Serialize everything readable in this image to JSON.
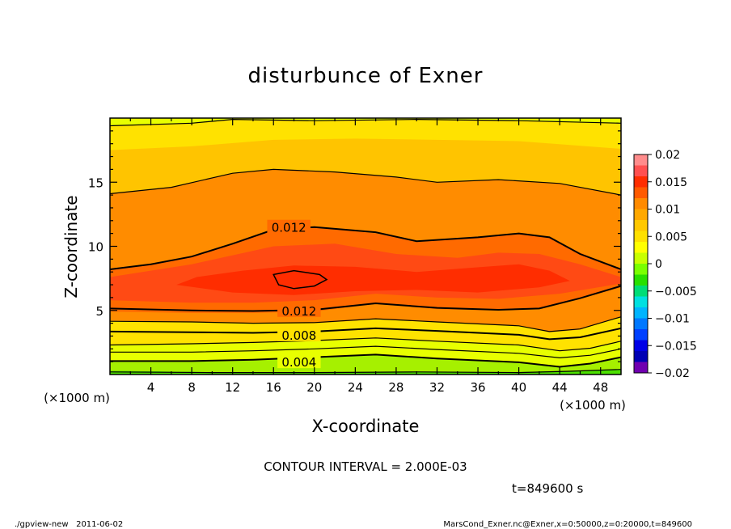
{
  "chart_data": {
    "type": "contour",
    "title": "disturbunce of Exner",
    "xlabel": "X-coordinate",
    "ylabel": "Z-coordinate",
    "x_unit_label": "(×1000 m)",
    "y_unit_label": "(×1000 m)",
    "xlim": [
      0,
      50
    ],
    "ylim": [
      0,
      20
    ],
    "x_ticks": [
      4,
      8,
      12,
      16,
      20,
      24,
      28,
      32,
      36,
      40,
      44,
      48
    ],
    "y_ticks": [
      5,
      10,
      15
    ],
    "contour_labels": [
      {
        "text": "0.012",
        "x": 17.5,
        "z": 11.5
      },
      {
        "text": "0.012",
        "x": 18.5,
        "z": 5.0
      },
      {
        "text": "0.008",
        "x": 18.5,
        "z": 3.1
      },
      {
        "text": "0.004",
        "x": 18.5,
        "z": 1.0
      }
    ],
    "colorbar": {
      "ticks": [
        "0.02",
        "0.015",
        "0.01",
        "0.005",
        "0",
        "−0.005",
        "−0.01",
        "−0.015",
        "−0.02"
      ],
      "colors": [
        "#ff8c8c",
        "#ff5050",
        "#ff2d00",
        "#ff5a00",
        "#ff8a00",
        "#ffa800",
        "#ffc800",
        "#ffe000",
        "#ffff00",
        "#c8ff00",
        "#7aff00",
        "#28e000",
        "#00dd77",
        "#00e0e0",
        "#00b4ff",
        "#0078ff",
        "#0040ff",
        "#0000e6",
        "#0000b4",
        "#7000b0"
      ]
    },
    "field_colors": {
      "band_0": "#4ce000",
      "band_1": "#a6f000",
      "band_2": "#e8ff00",
      "band_3": "#ffe200",
      "band_4": "#ffc400",
      "band_5": "#ffa800",
      "band_6": "#ff8c00",
      "band_7": "#ff6a00",
      "band_8": "#ff4a14",
      "band_9": "#ff2d00"
    },
    "contour_interval_text": "CONTOUR INTERVAL = 2.000E-03",
    "time_text": "t=849600 s"
  },
  "footer": {
    "left": "./gpview-new   2011-06-02",
    "right": "MarsCond_Exner.nc@Exner,x=0:50000,z=0:20000,t=849600"
  }
}
